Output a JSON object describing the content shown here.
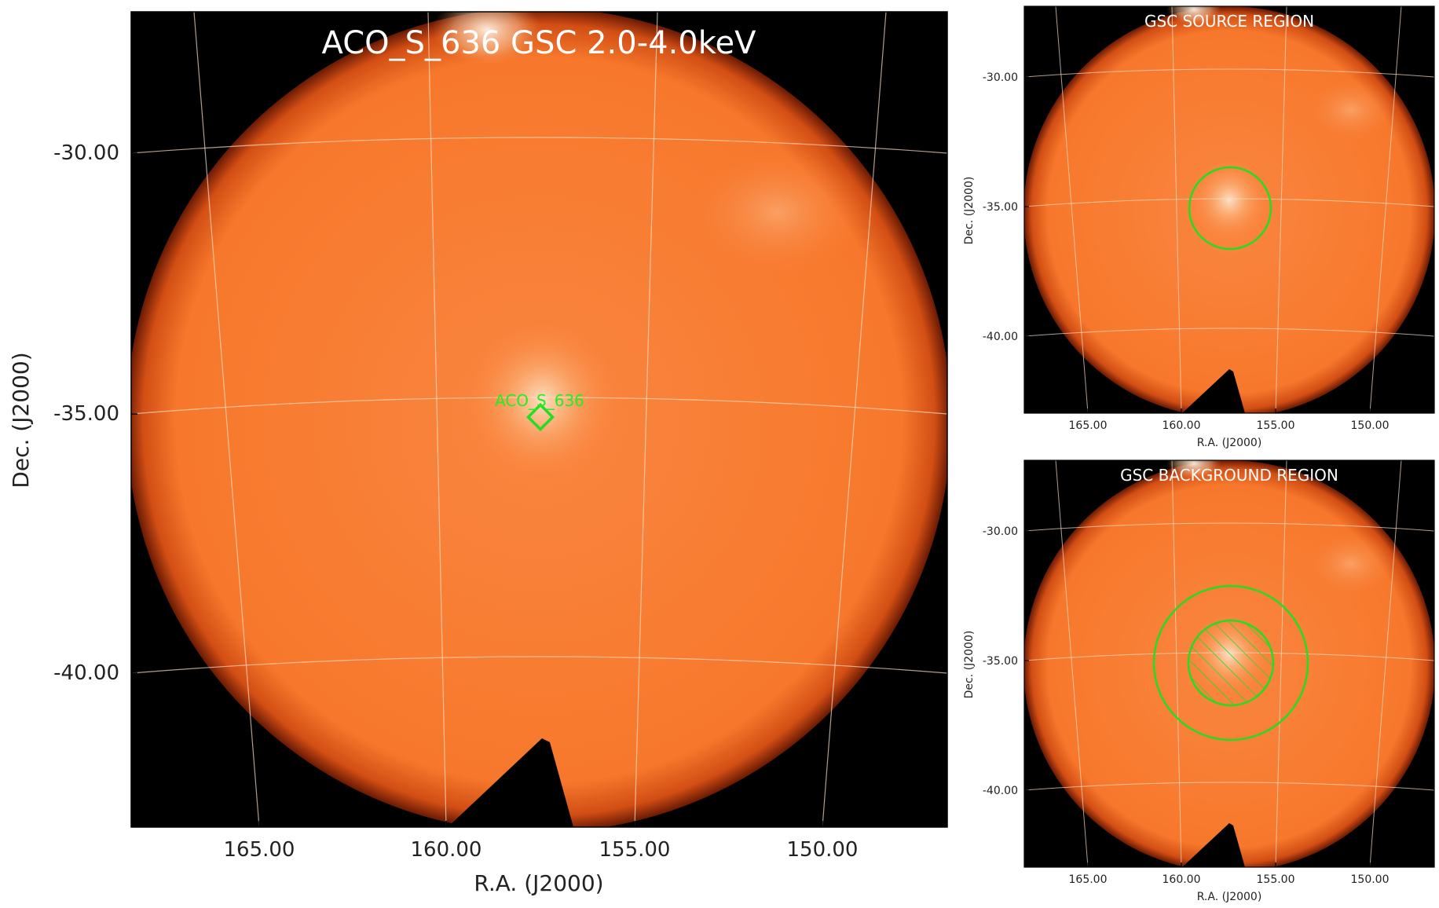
{
  "main_panel": {
    "title": "ACO_S_636 GSC 2.0-4.0keV",
    "source_label": "ACO_S_636",
    "xlabel": "R.A. (J2000)",
    "ylabel": "Dec. (J2000)",
    "x_ticks": [
      "165.00",
      "160.00",
      "155.00",
      "150.00"
    ],
    "y_ticks": [
      "-30.00",
      "-35.00",
      "-40.00"
    ]
  },
  "source_panel": {
    "title": "GSC SOURCE REGION",
    "xlabel": "R.A. (J2000)",
    "ylabel": "Dec. (J2000)",
    "x_ticks": [
      "165.00",
      "160.00",
      "155.00",
      "150.00"
    ],
    "y_ticks": [
      "-30.00",
      "-35.00",
      "-40.00"
    ]
  },
  "background_panel": {
    "title": "GSC BACKGROUND REGION",
    "xlabel": "R.A. (J2000)",
    "ylabel": "Dec. (J2000)",
    "x_ticks": [
      "165.00",
      "160.00",
      "155.00",
      "150.00"
    ],
    "y_ticks": [
      "-30.00",
      "-35.00",
      "-40.00"
    ]
  },
  "colors": {
    "disk": "#f87b2e",
    "disk_edge": "#c64410",
    "bright": "#fde6cc",
    "region": "#22dd22",
    "grid": "#fbe0cc",
    "frame_bg": "#000000"
  }
}
